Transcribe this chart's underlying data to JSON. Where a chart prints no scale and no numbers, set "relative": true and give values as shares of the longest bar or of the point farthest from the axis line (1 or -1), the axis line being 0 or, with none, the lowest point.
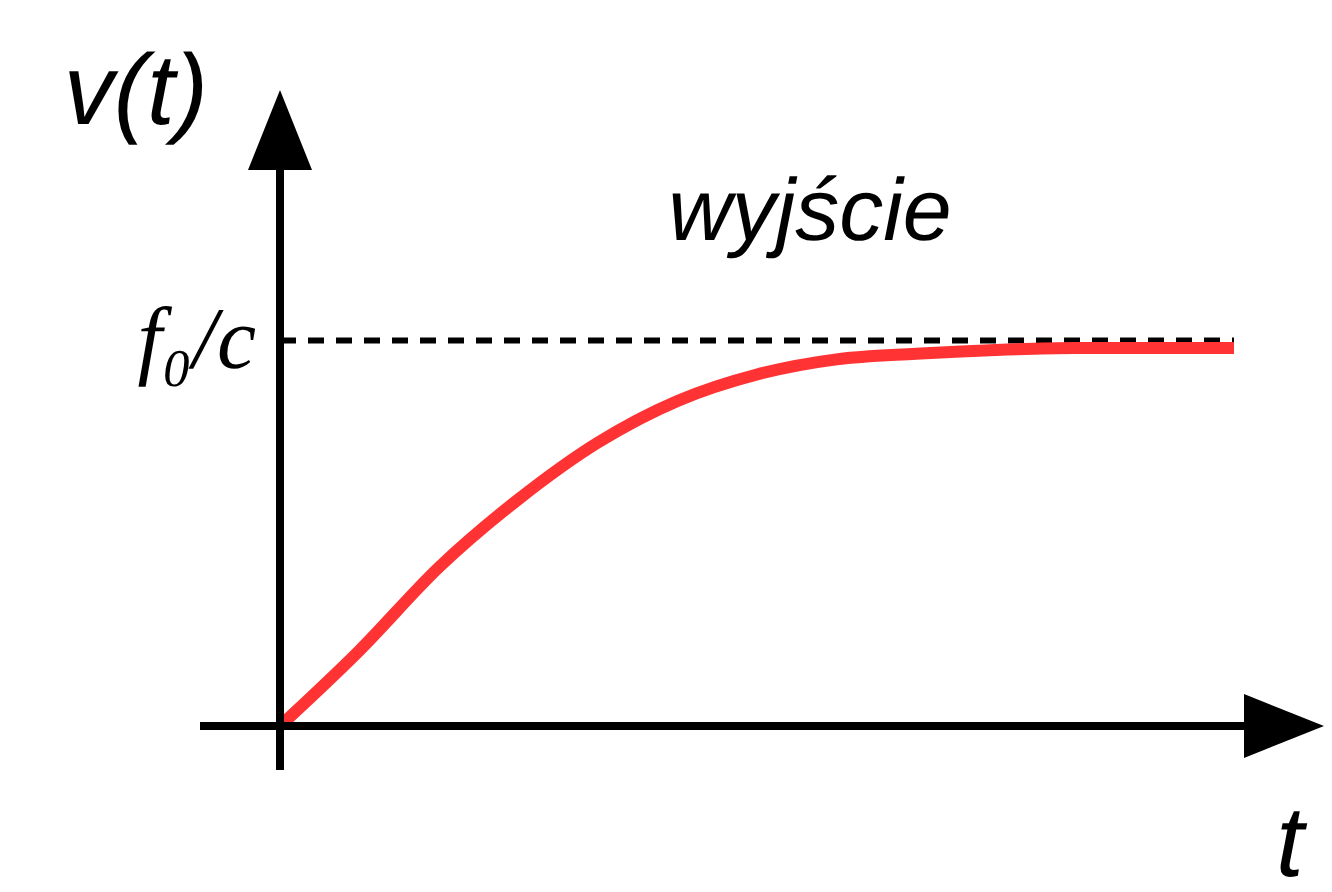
{
  "chart_data": {
    "type": "line",
    "relative": true,
    "xlabel": "t",
    "ylabel": "v(t)",
    "annotations": [
      "wyjście"
    ],
    "categories": [
      null,
      null,
      null,
      null,
      null,
      null,
      null,
      null,
      null,
      null,
      null,
      null,
      null
    ],
    "series": [
      {
        "color": "#ff3333",
        "values": [
          0,
          0.2,
          0.42,
          0.6,
          0.75,
          0.86,
          0.93,
          0.97,
          0.985,
          0.995,
          1,
          1,
          1
        ]
      }
    ],
    "ref_lines": [
      {
        "axis": "y",
        "value": 1.02,
        "label": "f₀/c",
        "line_style": "dashed",
        "color": "#000000"
      }
    ],
    "legend": false,
    "grid": false,
    "marker": "none",
    "line_style": "solid"
  }
}
